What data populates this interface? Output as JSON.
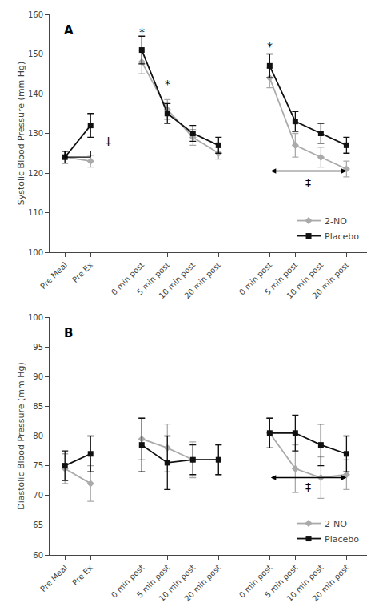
{
  "chart_data": [
    {
      "type": "line",
      "label": "A",
      "ylabel": "Systolic Blood Pressure (mm Hg)",
      "categories": [
        "Pre Meal",
        "Pre Ex",
        null,
        "0 min post",
        "5 min post",
        "10 min post",
        "20 min post",
        null,
        "0 min post",
        "5 min post",
        "10 min post",
        "20 min post"
      ],
      "xlim": [
        -0.6,
        11.8
      ],
      "ylim": [
        100,
        160
      ],
      "yticks": [
        100,
        110,
        120,
        130,
        140,
        150,
        160
      ],
      "grid": false,
      "legend": "lower right",
      "series": [
        {
          "name": "2-NO",
          "color": "#aaaaaa",
          "marker": "diamond",
          "values": [
            124.0,
            123.0,
            null,
            148.0,
            136.0,
            129.0,
            125.0,
            null,
            144.0,
            127.0,
            124.0,
            121.0
          ],
          "errors": [
            1.5,
            1.5,
            null,
            3.0,
            2.5,
            2.0,
            1.5,
            null,
            2.5,
            3.0,
            2.5,
            2.0
          ]
        },
        {
          "name": "Placebo",
          "color": "#111111",
          "marker": "square",
          "values": [
            124.0,
            132.0,
            null,
            151.0,
            135.0,
            130.0,
            127.0,
            null,
            147.0,
            133.0,
            130.0,
            127.0
          ],
          "errors": [
            1.5,
            3.0,
            null,
            3.5,
            2.5,
            2.0,
            2.0,
            null,
            3.0,
            2.5,
            2.5,
            2.0
          ]
        }
      ],
      "annotations": [
        {
          "x": 3,
          "y": 155.5,
          "text": "*"
        },
        {
          "x": 4,
          "y": 142.5,
          "text": "*"
        },
        {
          "x": 8,
          "y": 152.0,
          "text": "*"
        },
        {
          "x": 1.7,
          "y": 128.0,
          "text": "‡"
        },
        {
          "x": 9.5,
          "y": 117.5,
          "text": "‡"
        }
      ],
      "brackets": [
        {
          "x": [
            0,
            1
          ],
          "y": 124.0,
          "y_top": 125.5
        }
      ],
      "arrows": [
        {
          "x": [
            8,
            11
          ],
          "y": 120.5
        }
      ]
    },
    {
      "type": "line",
      "label": "B",
      "ylabel": "Diastolic Blood Pressure (mm Hg)",
      "categories": [
        "Pre Meal",
        "Pre Ex",
        null,
        "0 min post",
        "5 min post",
        "10 min post",
        "20 min post",
        null,
        "0 min post",
        "5 min post",
        "10 min post",
        "20 min post"
      ],
      "xlim": [
        -0.6,
        11.8
      ],
      "ylim": [
        60,
        100
      ],
      "yticks": [
        60,
        65,
        70,
        75,
        80,
        85,
        90,
        95,
        100
      ],
      "grid": false,
      "legend": "lower right",
      "series": [
        {
          "name": "2-NO",
          "color": "#aaaaaa",
          "marker": "diamond",
          "values": [
            74.5,
            72.0,
            null,
            79.5,
            78.0,
            76.0,
            76.0,
            null,
            80.5,
            74.5,
            73.0,
            73.5
          ],
          "errors": [
            2.5,
            3.0,
            null,
            3.5,
            4.0,
            3.0,
            2.5,
            null,
            2.5,
            4.0,
            3.5,
            2.5
          ]
        },
        {
          "name": "Placebo",
          "color": "#111111",
          "marker": "square",
          "values": [
            75.0,
            77.0,
            null,
            78.5,
            75.5,
            76.0,
            76.0,
            null,
            80.5,
            80.5,
            78.5,
            77.0
          ],
          "errors": [
            2.5,
            3.0,
            null,
            4.5,
            4.5,
            2.5,
            2.5,
            null,
            2.5,
            3.0,
            3.5,
            3.0
          ]
        }
      ],
      "annotations": [
        {
          "x": 9.5,
          "y": 71.5,
          "text": "‡"
        }
      ],
      "brackets": [],
      "arrows": [
        {
          "x": [
            8,
            11
          ],
          "y": 73.0
        }
      ]
    }
  ]
}
